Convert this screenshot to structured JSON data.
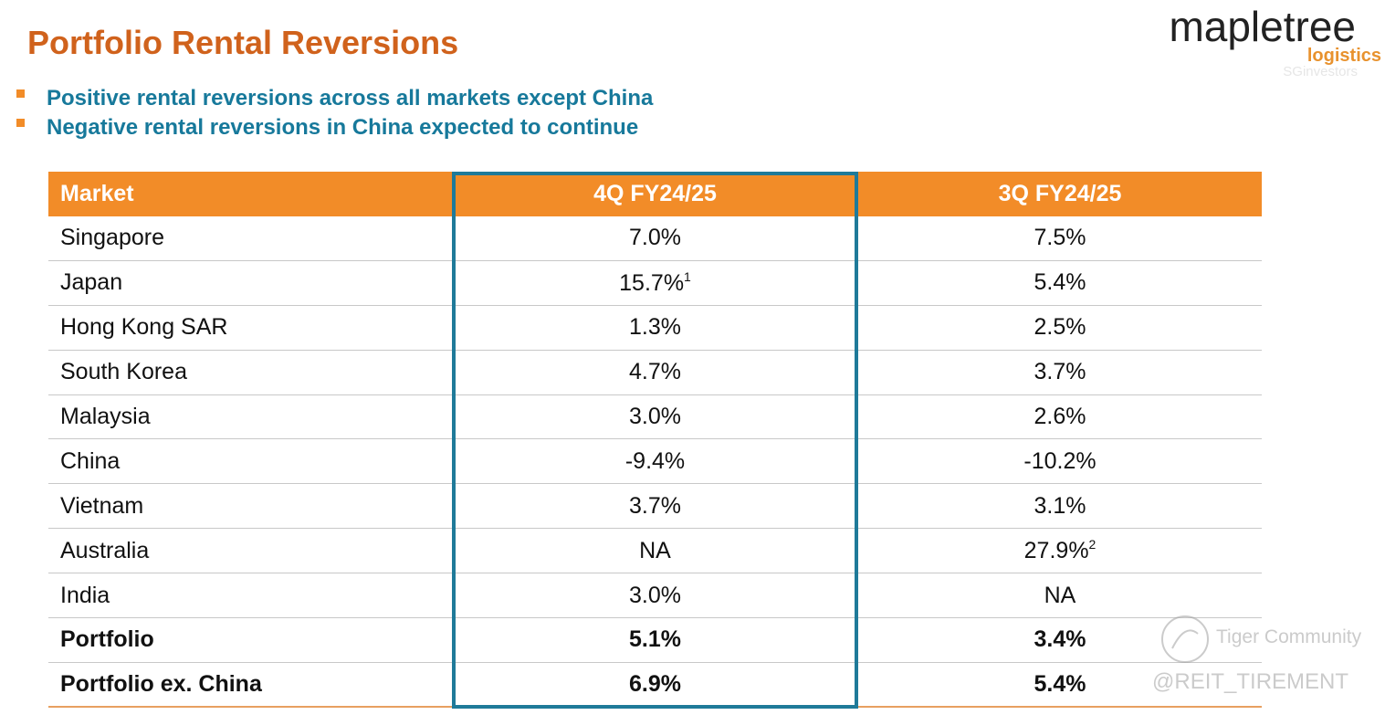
{
  "header": {
    "title": "Portfolio Rental Reversions",
    "bullets": [
      "Positive rental reversions across all markets except China",
      "Negative rental reversions in China expected to continue"
    ]
  },
  "logo": {
    "name": "mapletree",
    "sub": "logistics",
    "tag": "SGinvestors"
  },
  "table": {
    "columns": [
      "Market",
      "4Q FY24/25",
      "3Q FY24/25"
    ],
    "rows": [
      {
        "cells": [
          "Singapore",
          "7.0%",
          "7.5%"
        ]
      },
      {
        "cells": [
          "Japan",
          {
            "text": "15.7%",
            "sup": "1"
          },
          "5.4%"
        ]
      },
      {
        "cells": [
          "Hong Kong SAR",
          "1.3%",
          "2.5%"
        ]
      },
      {
        "cells": [
          "South Korea",
          "4.7%",
          "3.7%"
        ]
      },
      {
        "cells": [
          "Malaysia",
          "3.0%",
          "2.6%"
        ]
      },
      {
        "cells": [
          "China",
          "-9.4%",
          "-10.2%"
        ]
      },
      {
        "cells": [
          "Vietnam",
          "3.7%",
          "3.1%"
        ]
      },
      {
        "cells": [
          "Australia",
          "NA",
          {
            "text": "27.9%",
            "sup": "2"
          }
        ]
      },
      {
        "cells": [
          "India",
          "3.0%",
          "NA"
        ]
      },
      {
        "cells": [
          "Portfolio",
          "5.1%",
          "3.4%"
        ],
        "bold": true
      },
      {
        "cells": [
          "Portfolio ex. China",
          "6.9%",
          "5.4%"
        ],
        "bold": true
      }
    ]
  },
  "watermarks": [
    "Tiger Community",
    "@REIT_TIREMENT"
  ]
}
